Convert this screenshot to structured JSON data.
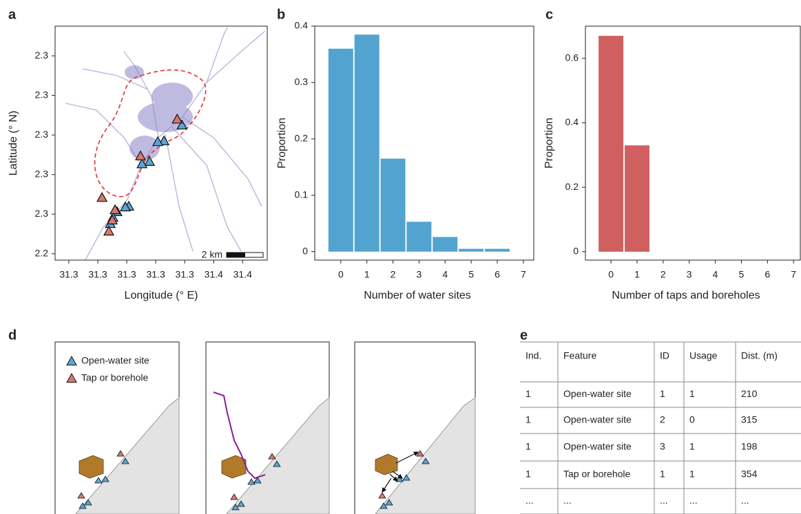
{
  "panel_labels": [
    "a",
    "b",
    "c",
    "d",
    "e"
  ],
  "chart_data": [
    {
      "type": "map",
      "xlabel": "Longitude (° E)",
      "ylabel": "Latitude (° N)",
      "scale_bar": "2 km",
      "xlim": [
        31.2505,
        31.397
      ],
      "ylim": [
        2.2384,
        2.2975
      ],
      "xticks": [
        {
          "value": 31.26,
          "label": "31.3"
        },
        {
          "value": 31.28,
          "label": "31.3"
        },
        {
          "value": 31.3,
          "label": "31.3"
        },
        {
          "value": 31.32,
          "label": "31.3"
        },
        {
          "value": 31.34,
          "label": "31.3"
        },
        {
          "value": 31.36,
          "label": "31.4"
        },
        {
          "value": 31.38,
          "label": "31.4"
        }
      ],
      "yticks": [
        {
          "value": 2.24,
          "label": "2.2"
        },
        {
          "value": 2.25,
          "label": "2.3"
        },
        {
          "value": 2.26,
          "label": "2.3"
        },
        {
          "value": 2.27,
          "label": "2.3"
        },
        {
          "value": 2.28,
          "label": "2.3"
        },
        {
          "value": 2.29,
          "label": "2.3"
        }
      ],
      "series": [
        {
          "name": "Open-water site",
          "color": "#5ba6d6",
          "x": [
            31.3381,
            31.3257,
            31.3214,
            31.3157,
            31.3105,
            31.3014,
            31.299,
            31.2933,
            31.2905,
            31.2886
          ],
          "y": [
            2.2725,
            2.2685,
            2.2683,
            2.2633,
            2.2627,
            2.252,
            2.2518,
            2.2506,
            2.2492,
            2.2476
          ]
        },
        {
          "name": "Tap or borehole",
          "color": "#d9776f",
          "x": [
            31.3348,
            31.3095,
            31.2829,
            31.2919,
            31.29,
            31.2876
          ],
          "y": [
            2.274,
            2.2647,
            2.2542,
            2.2511,
            2.2485,
            2.2457
          ]
        }
      ]
    },
    {
      "type": "bar",
      "xlabel": "Number of water sites",
      "ylabel": "Proportion",
      "color": "#52a3d0",
      "x": [
        0,
        1,
        2,
        3,
        4,
        5,
        6
      ],
      "values": [
        0.36,
        0.385,
        0.165,
        0.053,
        0.026,
        0.005,
        0.005
      ],
      "xlim": [
        -1,
        7.4
      ],
      "ylim": [
        -0.015,
        0.4
      ],
      "xticks": [
        0,
        1,
        2,
        3,
        4,
        5,
        6,
        7
      ],
      "yticks": [
        0,
        0.1,
        0.2,
        0.3,
        0.4
      ]
    },
    {
      "type": "bar",
      "xlabel": "Number of taps and boreholes",
      "ylabel": "Proportion",
      "color": "#d06060",
      "x": [
        0,
        1
      ],
      "values": [
        0.67,
        0.33
      ],
      "xlim": [
        -0.98,
        7.26
      ],
      "ylim": [
        -0.026,
        0.7
      ],
      "xticks": [
        0,
        1,
        2,
        3,
        4,
        5,
        6,
        7
      ],
      "yticks": [
        0,
        0.2,
        0.4,
        0.6
      ]
    }
  ],
  "table": {
    "header": [
      "Ind.",
      "Feature",
      "ID",
      "Usage",
      "Dist. (m)"
    ],
    "rows": [
      [
        "1",
        "Open-water site",
        "1",
        "1",
        "210"
      ],
      [
        "1",
        "Open-water site",
        "2",
        "0",
        "315"
      ],
      [
        "1",
        "Open-water site",
        "3",
        "1",
        "198"
      ],
      [
        "1",
        "Tap or borehole",
        "1",
        "1",
        "354"
      ],
      [
        "...",
        "...",
        "...",
        "...",
        "..."
      ]
    ]
  }
}
